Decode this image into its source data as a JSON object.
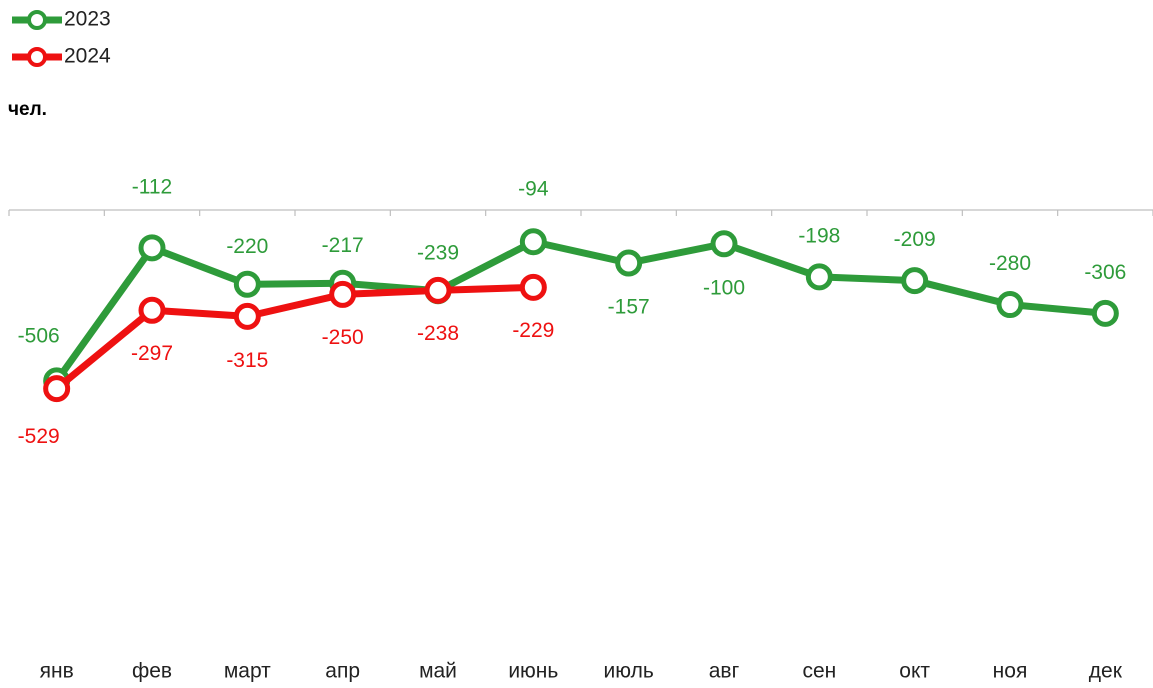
{
  "chart_data": {
    "type": "line",
    "y_label": "чел.",
    "categories": [
      "янв",
      "фев",
      "март",
      "апр",
      "май",
      "июнь",
      "июль",
      "авг",
      "сен",
      "окт",
      "ноя",
      "дек"
    ],
    "series": [
      {
        "name": "2023",
        "color": "#2e9b3a",
        "values": [
          -506,
          -112,
          -220,
          -217,
          -239,
          -94,
          -157,
          -100,
          -198,
          -209,
          -280,
          -306
        ]
      },
      {
        "name": "2024",
        "color": "#ee1111",
        "values": [
          -529,
          -297,
          -315,
          -250,
          -238,
          -229,
          null,
          null,
          null,
          null,
          null,
          null
        ]
      }
    ],
    "ylim": [
      -1300,
      0
    ],
    "legend": "top-left"
  }
}
